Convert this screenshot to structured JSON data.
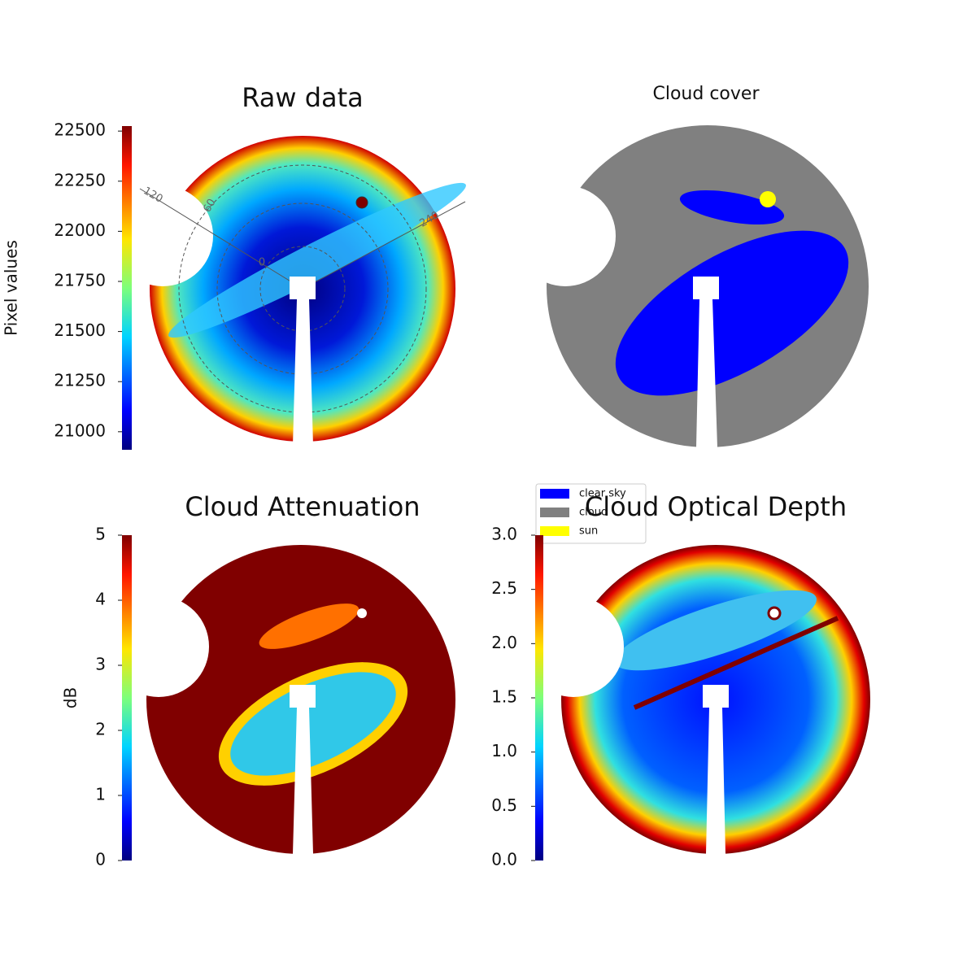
{
  "chart_data": [
    {
      "type": "image",
      "title": "Raw data",
      "ylabel": "Pixel values",
      "ylim": [
        20910,
        22525
      ],
      "yticks": [
        21000,
        21250,
        21500,
        21750,
        22000,
        22250,
        22500
      ],
      "annotations": [
        "120",
        "60",
        "240",
        "0"
      ]
    },
    {
      "type": "image",
      "title": "Cloud cover",
      "legend": [
        {
          "name": "clear sky",
          "color": "#0000ff"
        },
        {
          "name": "cloud",
          "color": "#808080"
        },
        {
          "name": "sun",
          "color": "#ffff00"
        }
      ]
    },
    {
      "type": "image",
      "title": "Cloud Attenuation",
      "ylabel": "dB",
      "ylim": [
        0,
        5
      ],
      "yticks": [
        0,
        1,
        2,
        3,
        4,
        5
      ]
    },
    {
      "type": "image",
      "title": "Cloud Optical Depth",
      "ylim": [
        0,
        3
      ],
      "yticks": [
        {
          "value": 0,
          "label": "0.0"
        },
        0.5,
        {
          "value": 1,
          "label": "1.0"
        },
        1.5,
        {
          "value": 2,
          "label": "2.0"
        },
        2.5,
        {
          "value": 3,
          "label": "3.0"
        }
      ]
    }
  ]
}
